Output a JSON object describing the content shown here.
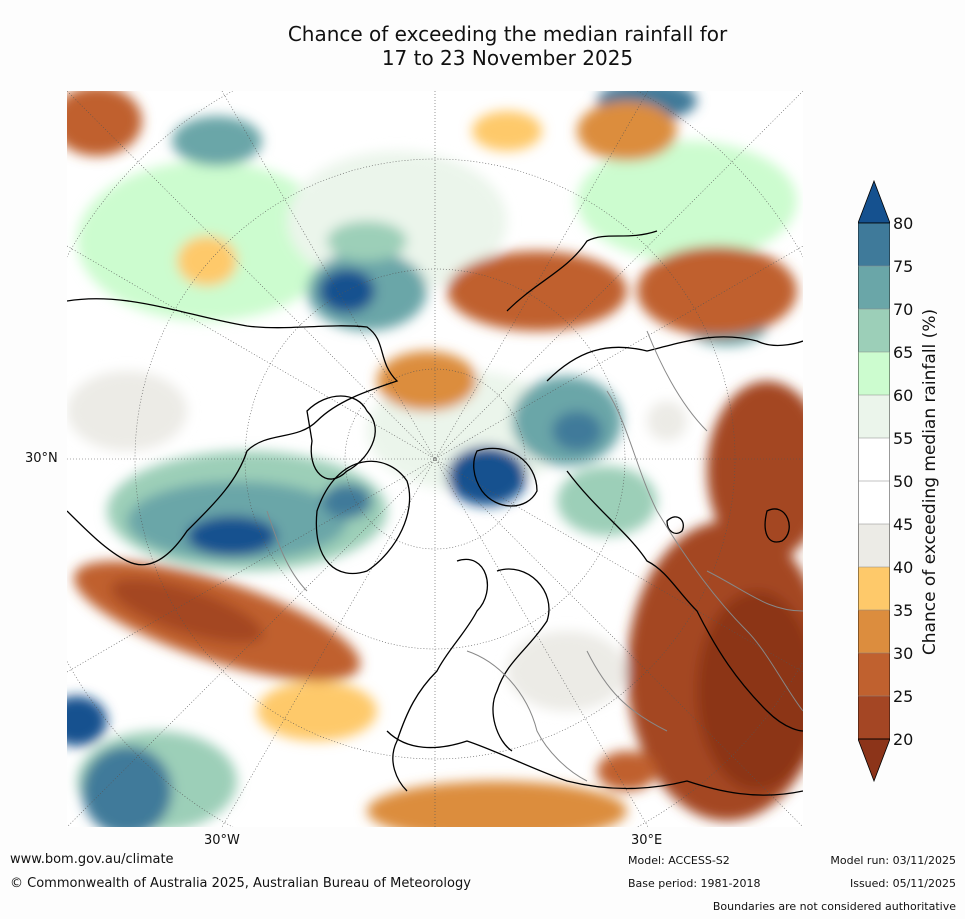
{
  "title_line1": "Chance of exceeding the median rainfall for",
  "title_line2": "17 to 23 November 2025",
  "map_labels": {
    "lat_30n": "30°N",
    "lon_30w": "30°W",
    "lon_30e": "30°E"
  },
  "colorbar": {
    "label": "Chance of exceeding median rainfall (%)",
    "ticks": [
      "80",
      "75",
      "70",
      "65",
      "60",
      "55",
      "50",
      "45",
      "40",
      "35",
      "30",
      "25",
      "20"
    ],
    "colors": {
      "above_80": "#15518f",
      "75_80": "#3f7a9a",
      "70_75": "#6aa6a8",
      "65_70": "#9ccfb8",
      "60_65": "#ccfccf",
      "55_60": "#ebf5eb",
      "45_55": "#ffffff",
      "40_45": "#ecebe6",
      "35_40": "#fec96a",
      "30_35": "#dc8d3e",
      "25_30": "#c0612f",
      "20_25": "#a44624",
      "below_20": "#8c3419"
    }
  },
  "footer": {
    "url": "www.bom.gov.au/climate",
    "copyright": "© Commonwealth of Australia 2025, Australian Bureau of Meteorology",
    "model": "Model: ACCESS-S2",
    "base_period": "Base period: 1981-2018",
    "model_run": "Model run: 03/11/2025",
    "issued": "Issued: 05/11/2025",
    "disclaimer": "Boundaries are not considered authoritative"
  }
}
